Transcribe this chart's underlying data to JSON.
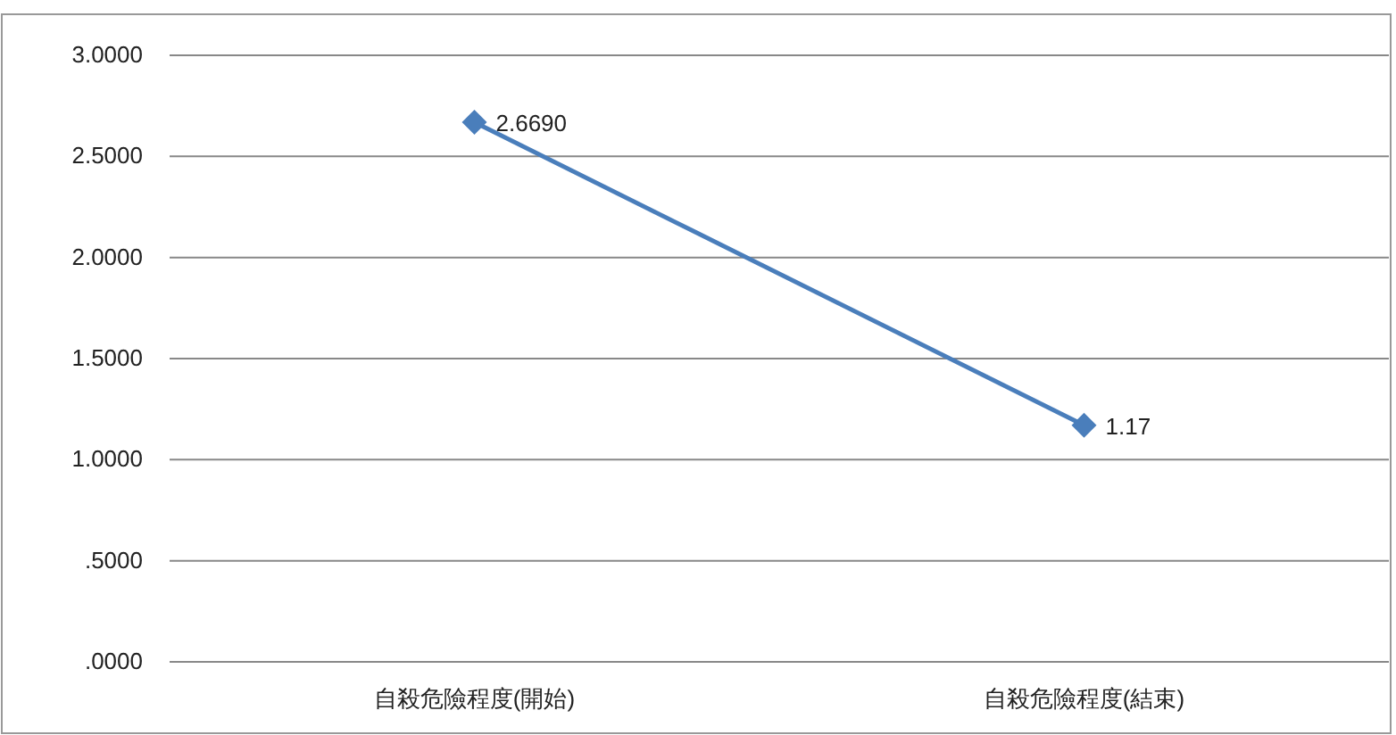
{
  "chart_data": {
    "type": "line",
    "categories": [
      "自殺危險程度(開始)",
      "自殺危險程度(結束)"
    ],
    "series": [
      {
        "color": "#4a7ebb",
        "values": [
          2.669,
          1.17
        ],
        "value_labels": [
          "2.6690",
          "1.17"
        ]
      }
    ],
    "ylim": [
      0,
      3
    ],
    "yticks": [
      {
        "value": 0,
        "label": ".0000"
      },
      {
        "value": 0.5,
        "label": ".5000"
      },
      {
        "value": 1,
        "label": "1.0000"
      },
      {
        "value": 1.5,
        "label": "1.5000"
      },
      {
        "value": 2,
        "label": "2.0000"
      },
      {
        "value": 2.5,
        "label": "2.5000"
      },
      {
        "value": 3,
        "label": "3.0000"
      }
    ],
    "grid": "y",
    "marker": "diamond",
    "line_style": "solid"
  }
}
